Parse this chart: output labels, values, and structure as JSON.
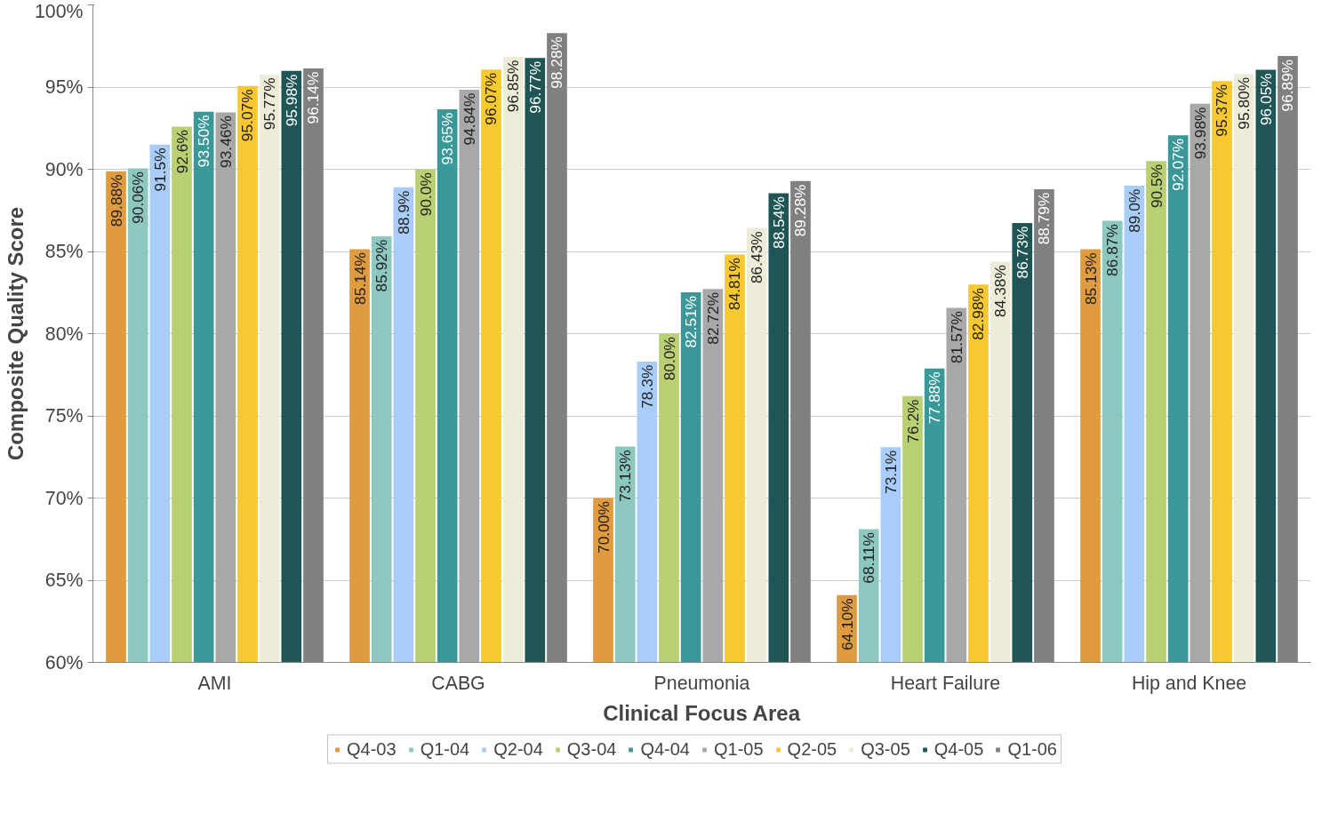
{
  "chart_data": {
    "type": "bar",
    "xlabel": "Clinical Focus Area",
    "ylabel": "Composite Quality Score",
    "categories": [
      "AMI",
      "CABG",
      "Pneumonia",
      "Heart Failure",
      "Hip and Knee"
    ],
    "ylim": [
      60,
      100
    ],
    "yticks": [
      {
        "value": 60,
        "label": "60%"
      },
      {
        "value": 65,
        "label": "65%"
      },
      {
        "value": 70,
        "label": "70%"
      },
      {
        "value": 75,
        "label": "75%"
      },
      {
        "value": 80,
        "label": "80%"
      },
      {
        "value": 85,
        "label": "85%"
      },
      {
        "value": 90,
        "label": "90%"
      },
      {
        "value": 95,
        "label": "95%"
      },
      {
        "value": 100,
        "label": "100%"
      }
    ],
    "grid": "y",
    "legend": "bottom",
    "series": [
      {
        "name": "Q4-03",
        "color": "#e09a40",
        "values": [
          89.88,
          85.14,
          70.0,
          64.1,
          85.13
        ],
        "value_labels": [
          "89.88%",
          "85.14%",
          "70.00%",
          "64.10%",
          "85.13%"
        ]
      },
      {
        "name": "Q1-04",
        "color": "#8cc7c0",
        "values": [
          90.06,
          85.92,
          73.13,
          68.11,
          86.87
        ],
        "value_labels": [
          "90.06%",
          "85.92%",
          "73.13%",
          "68.11%",
          "86.87%"
        ]
      },
      {
        "name": "Q2-04",
        "color": "#a8cdf8",
        "values": [
          91.5,
          88.9,
          78.3,
          73.1,
          89.0
        ],
        "value_labels": [
          "91.5%",
          "88.9%",
          "78.3%",
          "73.1%",
          "89.0%"
        ]
      },
      {
        "name": "Q3-04",
        "color": "#b8cf72",
        "values": [
          92.6,
          90.0,
          80.0,
          76.2,
          90.5
        ],
        "value_labels": [
          "92.6%",
          "90.0%",
          "80.0%",
          "76.2%",
          "90.5%"
        ]
      },
      {
        "name": "Q4-04",
        "color": "#3a9898",
        "values": [
          93.5,
          93.65,
          82.51,
          77.88,
          92.07
        ],
        "value_labels": [
          "93.50%",
          "93.65%",
          "82.51%",
          "77.88%",
          "92.07%"
        ]
      },
      {
        "name": "Q1-05",
        "color": "#a8a8a8",
        "values": [
          93.46,
          94.84,
          82.72,
          81.57,
          93.98
        ],
        "value_labels": [
          "93.46%",
          "94.84%",
          "82.72%",
          "81.57%",
          "93.98%"
        ]
      },
      {
        "name": "Q2-05",
        "color": "#f8c830",
        "values": [
          95.07,
          96.07,
          84.81,
          82.98,
          95.37
        ],
        "value_labels": [
          "95.07%",
          "96.07%",
          "84.81%",
          "82.98%",
          "95.37%"
        ]
      },
      {
        "name": "Q3-05",
        "color": "#ececd8",
        "values": [
          95.77,
          96.85,
          86.43,
          84.38,
          95.8
        ],
        "value_labels": [
          "95.77%",
          "96.85%",
          "86.43%",
          "84.38%",
          "95.80%"
        ]
      },
      {
        "name": "Q4-05",
        "color": "#1f5555",
        "values": [
          95.98,
          96.77,
          88.54,
          86.73,
          96.05
        ],
        "value_labels": [
          "95.98%",
          "96.77%",
          "88.54%",
          "86.73%",
          "96.05%"
        ]
      },
      {
        "name": "Q1-06",
        "color": "#808080",
        "values": [
          96.14,
          98.28,
          89.28,
          88.79,
          96.89
        ],
        "value_labels": [
          "96.14%",
          "98.28%",
          "89.28%",
          "88.79%",
          "96.89%"
        ]
      }
    ]
  }
}
